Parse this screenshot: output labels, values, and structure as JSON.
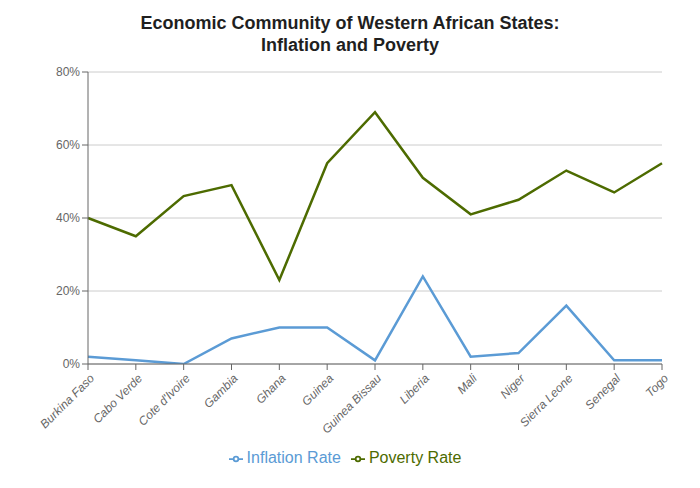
{
  "chart_data": {
    "type": "line",
    "title": "Economic Community of Western African States:\nInflation and Poverty",
    "categories": [
      "Burkina Faso",
      "Cabo Verde",
      "Cote d'Ivoire",
      "Gambia",
      "Ghana",
      "Guinea",
      "Guinea Bissau",
      "Liberia",
      "Mali",
      "Niger",
      "Sierra Leone",
      "Senegal",
      "Togo"
    ],
    "series": [
      {
        "name": "Inflation Rate",
        "color": "#5B9BD5",
        "values": [
          2,
          1,
          0,
          7,
          10,
          10,
          1,
          24,
          2,
          3,
          16,
          1,
          1
        ]
      },
      {
        "name": "Poverty Rate",
        "color": "#4D6B00",
        "values": [
          40,
          35,
          46,
          49,
          23,
          55,
          69,
          51,
          41,
          45,
          53,
          47,
          55
        ]
      }
    ],
    "ylim": [
      0,
      80
    ],
    "yticks": [
      {
        "value": 0,
        "label": "0%"
      },
      {
        "value": 20,
        "label": "20%"
      },
      {
        "value": 40,
        "label": "40%"
      },
      {
        "value": 60,
        "label": "60%"
      },
      {
        "value": 80,
        "label": "80%"
      }
    ],
    "grid": true,
    "legend": "bottom"
  }
}
